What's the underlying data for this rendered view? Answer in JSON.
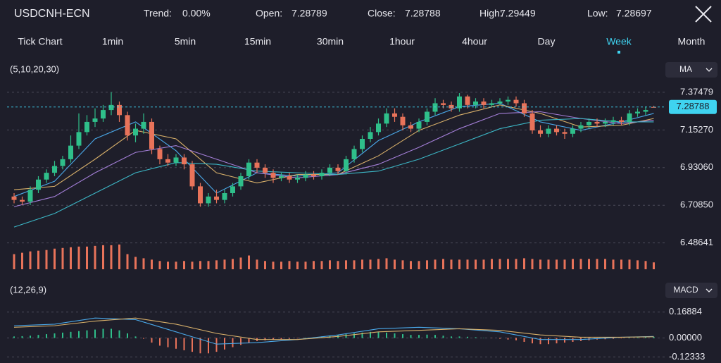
{
  "header": {
    "symbol": "USDCNH-ECN",
    "stats": [
      {
        "label": "Trend:",
        "value": "0.00%"
      },
      {
        "label": "Open:",
        "value": "7.28789"
      },
      {
        "label": "Close:",
        "value": "7.28788"
      },
      {
        "label": "High:",
        "value": "7.29449"
      },
      {
        "label": "Low:",
        "value": "7.28697"
      }
    ]
  },
  "tabs": [
    "Tick Chart",
    "1min",
    "5min",
    "15min",
    "30min",
    "1hour",
    "4hour",
    "Day",
    "Week",
    "Month"
  ],
  "active_tab": "Week",
  "chart_data": [
    {
      "type": "candlestick",
      "label": "(5,10,20,30)",
      "button": "MA",
      "up_color": "#2fbf8a",
      "down_color": "#e8735a",
      "open": [
        6.76,
        6.74,
        6.73,
        6.8,
        6.86,
        6.9,
        6.94,
        6.98,
        7.06,
        7.14,
        7.2,
        7.22,
        7.27,
        7.3,
        7.24,
        7.12,
        7.16,
        7.2,
        7.04,
        6.98,
        6.96,
        6.99,
        6.95,
        6.82,
        6.72,
        6.76,
        6.74,
        6.78,
        6.82,
        6.88,
        6.96,
        6.93,
        6.9,
        6.87,
        6.88,
        6.86,
        6.87,
        6.89,
        6.88,
        6.9,
        6.93,
        6.91,
        6.98,
        7.04,
        7.1,
        7.14,
        7.19,
        7.25,
        7.23,
        7.18,
        7.16,
        7.2,
        7.26,
        7.31,
        7.3,
        7.28,
        7.35,
        7.3,
        7.32,
        7.3,
        7.31,
        7.32,
        7.33,
        7.31,
        7.25,
        7.15,
        7.13,
        7.16,
        7.14,
        7.13,
        7.16,
        7.18,
        7.2,
        7.19,
        7.2,
        7.21,
        7.2,
        7.25,
        7.26,
        7.28789
      ],
      "high": [
        6.78,
        6.76,
        6.82,
        6.88,
        6.92,
        6.97,
        7.0,
        7.12,
        7.25,
        7.24,
        7.28,
        7.3,
        7.375,
        7.32,
        7.26,
        7.19,
        7.25,
        7.22,
        7.06,
        7.01,
        7.01,
        7.01,
        6.97,
        6.84,
        6.78,
        6.8,
        6.8,
        6.84,
        6.9,
        6.98,
        6.98,
        6.95,
        6.92,
        6.9,
        6.9,
        6.89,
        6.91,
        6.91,
        6.92,
        6.95,
        6.95,
        7.0,
        7.06,
        7.12,
        7.17,
        7.22,
        7.28,
        7.28,
        7.25,
        7.2,
        7.22,
        7.28,
        7.34,
        7.33,
        7.32,
        7.37,
        7.36,
        7.34,
        7.34,
        7.33,
        7.34,
        7.35,
        7.35,
        7.33,
        7.27,
        7.18,
        7.18,
        7.18,
        7.16,
        7.18,
        7.2,
        7.22,
        7.22,
        7.22,
        7.23,
        7.23,
        7.27,
        7.28,
        7.29,
        7.29449
      ],
      "low": [
        6.72,
        6.71,
        6.71,
        6.78,
        6.84,
        6.88,
        6.92,
        6.96,
        7.04,
        7.12,
        7.17,
        7.2,
        7.24,
        7.2,
        7.09,
        7.08,
        7.13,
        7.01,
        6.95,
        6.94,
        6.94,
        6.92,
        6.8,
        6.7,
        6.7,
        6.72,
        6.72,
        6.76,
        6.8,
        6.86,
        6.9,
        6.87,
        6.84,
        6.85,
        6.84,
        6.84,
        6.85,
        6.86,
        6.86,
        6.88,
        6.89,
        6.89,
        6.96,
        7.02,
        7.08,
        7.12,
        7.17,
        7.2,
        7.15,
        7.14,
        7.14,
        7.18,
        7.24,
        7.28,
        7.26,
        7.26,
        7.28,
        7.28,
        7.28,
        7.29,
        7.3,
        7.3,
        7.29,
        7.23,
        7.13,
        7.11,
        7.11,
        7.12,
        7.1,
        7.11,
        7.14,
        7.16,
        7.17,
        7.17,
        7.18,
        7.18,
        7.18,
        7.23,
        7.24,
        7.28697
      ],
      "close": [
        6.74,
        6.73,
        6.8,
        6.86,
        6.9,
        6.94,
        6.98,
        7.06,
        7.14,
        7.2,
        7.22,
        7.27,
        7.3,
        7.24,
        7.12,
        7.16,
        7.2,
        7.04,
        6.98,
        6.96,
        6.99,
        6.95,
        6.82,
        6.72,
        6.76,
        6.74,
        6.78,
        6.82,
        6.88,
        6.96,
        6.93,
        6.9,
        6.87,
        6.88,
        6.86,
        6.87,
        6.89,
        6.88,
        6.9,
        6.93,
        6.91,
        6.98,
        7.04,
        7.1,
        7.14,
        7.19,
        7.25,
        7.23,
        7.18,
        7.16,
        7.2,
        7.26,
        7.31,
        7.3,
        7.28,
        7.35,
        7.3,
        7.32,
        7.3,
        7.31,
        7.32,
        7.33,
        7.31,
        7.25,
        7.15,
        7.13,
        7.16,
        7.14,
        7.13,
        7.16,
        7.18,
        7.2,
        7.19,
        7.2,
        7.21,
        7.2,
        7.25,
        7.26,
        7.27,
        7.28788
      ],
      "lines": [
        {
          "color": "#4aa8e8",
          "x": [
            0,
            5,
            10,
            15,
            20,
            25,
            30,
            35,
            40,
            45,
            50,
            55,
            60,
            65,
            70,
            75,
            79
          ],
          "values": [
            6.76,
            6.85,
            7.1,
            7.2,
            7.03,
            6.78,
            6.9,
            6.88,
            6.9,
            7.09,
            7.2,
            7.29,
            7.31,
            7.2,
            7.15,
            7.2,
            7.25
          ]
        },
        {
          "color": "#d8b06a",
          "x": [
            0,
            5,
            10,
            15,
            20,
            25,
            30,
            35,
            40,
            45,
            50,
            55,
            60,
            65,
            70,
            75,
            79
          ],
          "values": [
            6.8,
            6.82,
            6.98,
            7.15,
            7.1,
            6.9,
            6.84,
            6.89,
            6.89,
            7.0,
            7.15,
            7.24,
            7.3,
            7.25,
            7.17,
            7.18,
            7.22
          ]
        },
        {
          "color": "#a47fd8",
          "x": [
            0,
            5,
            10,
            15,
            20,
            25,
            30,
            35,
            40,
            45,
            50,
            55,
            60,
            65,
            70,
            75,
            79
          ],
          "values": [
            6.7,
            6.76,
            6.9,
            7.02,
            7.06,
            6.98,
            6.9,
            6.87,
            6.89,
            6.95,
            7.05,
            7.16,
            7.25,
            7.26,
            7.22,
            7.19,
            7.21
          ]
        },
        {
          "color": "#3cb7c6",
          "x": [
            0,
            5,
            10,
            15,
            20,
            25,
            30,
            35,
            40,
            45,
            50,
            55,
            60,
            65,
            70,
            75,
            79
          ],
          "values": [
            6.58,
            6.66,
            6.78,
            6.9,
            6.96,
            6.95,
            6.91,
            6.9,
            6.89,
            6.91,
            6.98,
            7.07,
            7.16,
            7.21,
            7.22,
            7.2,
            7.2
          ]
        }
      ],
      "last_price": 7.28788,
      "last_color": "#3fd3f0",
      "ylim": [
        6.46,
        7.42
      ],
      "yticks": [
        6.48641,
        {
          "value": 6.7085,
          "label": "6.70850"
        },
        {
          "value": 6.9306,
          "label": "6.93060"
        },
        {
          "value": 7.1527,
          "label": "7.15270"
        },
        7.37479
      ],
      "grid": true
    },
    {
      "type": "bar",
      "color": "#e8735a",
      "ylim": [
        0,
        40
      ],
      "values": [
        22,
        24,
        26,
        27,
        28,
        30,
        31,
        32,
        33,
        33,
        34,
        35,
        35,
        36,
        22,
        18,
        16,
        14,
        12,
        11,
        11,
        12,
        11,
        12,
        12,
        13,
        14,
        15,
        17,
        20,
        14,
        12,
        11,
        11,
        12,
        11,
        11,
        12,
        12,
        13,
        12,
        13,
        13,
        14,
        14,
        15,
        16,
        14,
        13,
        12,
        12,
        13,
        14,
        15,
        14,
        14,
        14,
        14,
        14,
        15,
        15,
        15,
        15,
        16,
        15,
        14,
        14,
        14,
        14,
        15,
        15,
        15,
        15,
        15,
        14,
        14,
        14,
        13,
        12,
        10
      ]
    },
    {
      "type": "macd",
      "label": "(12,26,9)",
      "button": "MACD",
      "up_color": "#2fbf8a",
      "down_color": "#e8735a",
      "histogram": [
        0.01,
        0.012,
        0.015,
        0.02,
        0.025,
        0.03,
        0.035,
        0.04,
        0.045,
        0.05,
        0.055,
        0.06,
        0.06,
        0.05,
        0.03,
        0.01,
        -0.005,
        -0.03,
        -0.05,
        -0.06,
        -0.07,
        -0.08,
        -0.09,
        -0.1,
        -0.1,
        -0.09,
        -0.075,
        -0.06,
        -0.045,
        -0.03,
        -0.02,
        -0.015,
        -0.01,
        -0.008,
        -0.005,
        -0.003,
        0.002,
        0.005,
        0.01,
        0.015,
        0.02,
        0.025,
        0.03,
        0.035,
        0.04,
        0.04,
        0.035,
        0.03,
        0.025,
        0.02,
        0.02,
        0.022,
        0.02,
        0.015,
        0.01,
        0.01,
        0.008,
        0.005,
        0.002,
        -0.002,
        -0.005,
        -0.01,
        -0.015,
        -0.025,
        -0.035,
        -0.04,
        -0.04,
        -0.035,
        -0.03,
        -0.025,
        -0.02,
        -0.015,
        -0.01,
        -0.008,
        -0.005,
        -0.003,
        0.002,
        0.004,
        0.006,
        0.008
      ],
      "lines": [
        {
          "color": "#4aa8e8",
          "x": [
            0,
            5,
            10,
            15,
            20,
            25,
            30,
            35,
            40,
            45,
            50,
            55,
            60,
            65,
            70,
            75,
            79
          ],
          "values": [
            0.08,
            0.09,
            0.13,
            0.12,
            0.04,
            -0.04,
            -0.03,
            -0.01,
            0.02,
            0.06,
            0.07,
            0.06,
            0.04,
            -0.01,
            -0.01,
            0.005,
            0.01
          ]
        },
        {
          "color": "#d8b06a",
          "x": [
            0,
            5,
            10,
            15,
            20,
            25,
            30,
            35,
            40,
            45,
            50,
            55,
            60,
            65,
            70,
            75,
            79
          ],
          "values": [
            0.07,
            0.08,
            0.11,
            0.13,
            0.09,
            0.03,
            -0.01,
            -0.01,
            0.01,
            0.04,
            0.05,
            0.06,
            0.05,
            0.02,
            0.005,
            0.005,
            0.008
          ]
        }
      ],
      "ylim": [
        -0.14,
        0.2
      ],
      "yticks": [
        {
          "value": -0.12333,
          "label": "-0.12333"
        },
        {
          "value": 0,
          "label": "0.00000"
        },
        0.16884
      ],
      "grid": true
    }
  ]
}
